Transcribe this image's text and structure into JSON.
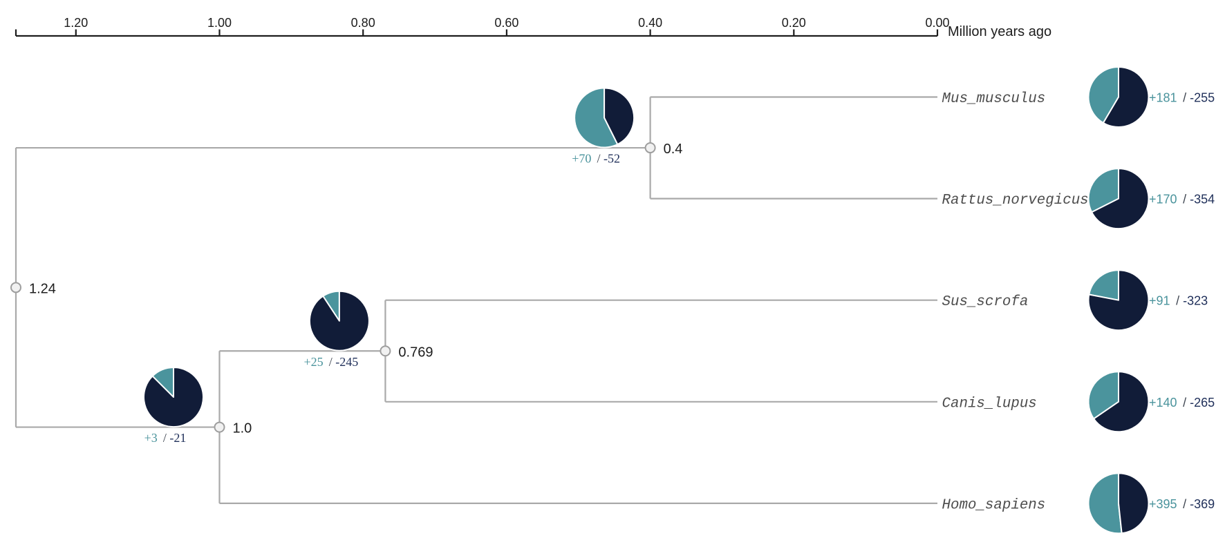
{
  "figure": {
    "kind": "phylogenetic tree with gene family expansion/contraction pie charts",
    "background_color": "#ffffff"
  },
  "axis": {
    "title": "Million years ago",
    "tick_labels": [
      "1.20",
      "1.00",
      "0.80",
      "0.60",
      "0.40",
      "0.20",
      "0.00"
    ],
    "tick_values": [
      1.2,
      1.0,
      0.8,
      0.6,
      0.4,
      0.2,
      0.0
    ]
  },
  "colors": {
    "expansion_teal": "#4B949D",
    "contraction_navy": "#111C38",
    "count_plus_teal": "#4A939C",
    "count_minus_navy": "#20305A",
    "count_slash_dark": "#3E4550",
    "branch_gray": "#A9A9A9",
    "node_circle_fill": "#F1F1F1",
    "node_circle_stroke": "#9E9E9E",
    "tip_name_gray": "#4D4D4D",
    "axis_black": "#1C1C1C",
    "pie_edge_white": "#FFFFFF"
  },
  "chart_data": {
    "type": "phylogenetic_tree_with_pies",
    "time_axis": {
      "label": "Million years ago",
      "ticks": [
        1.2,
        1.0,
        0.8,
        0.6,
        0.4,
        0.2,
        0.0
      ],
      "direction": "past_to_present_left_to_right"
    },
    "tips_top_to_bottom": [
      "Mus_musculus",
      "Rattus_norvegicus",
      "Sus_scrofa",
      "Canis_lupus",
      "Homo_sapiens"
    ],
    "tip_data": [
      {
        "name": "Mus_musculus",
        "expansions": 181,
        "contractions": 255,
        "plus_label": "+181",
        "minus_label": "-255"
      },
      {
        "name": "Rattus_norvegicus",
        "expansions": 170,
        "contractions": 354,
        "plus_label": "+170",
        "minus_label": "-354"
      },
      {
        "name": "Sus_scrofa",
        "expansions": 91,
        "contractions": 323,
        "plus_label": "+91",
        "minus_label": "-323"
      },
      {
        "name": "Canis_lupus",
        "expansions": 140,
        "contractions": 265,
        "plus_label": "+140",
        "minus_label": "-265"
      },
      {
        "name": "Homo_sapiens",
        "expansions": 395,
        "contractions": 369,
        "plus_label": "+395",
        "minus_label": "-369"
      }
    ],
    "internal_node_data": [
      {
        "id": "node_rodents",
        "age": 0.4,
        "age_label": "0.4",
        "children": [
          "Mus_musculus",
          "Rattus_norvegicus"
        ],
        "expansions": 70,
        "contractions": 52,
        "plus_label": "+70",
        "minus_label": "-52"
      },
      {
        "id": "node_sus_canis",
        "age": 0.769,
        "age_label": "0.769",
        "children": [
          "Sus_scrofa",
          "Canis_lupus"
        ],
        "expansions": 25,
        "contractions": 245,
        "plus_label": "+25",
        "minus_label": "-245"
      },
      {
        "id": "node_laurasia",
        "age": 1.0,
        "age_label": "1.0",
        "children": [
          "node_sus_canis",
          "Homo_sapiens"
        ],
        "expansions": 3,
        "contractions": 21,
        "plus_label": "+3",
        "minus_label": "-21"
      },
      {
        "id": "root",
        "age": 1.24,
        "age_label": "1.24",
        "children": [
          "node_rodents",
          "node_laurasia"
        ],
        "expansions": null,
        "contractions": null,
        "plus_label": "",
        "minus_label": ""
      }
    ],
    "tree_newick": "(((Mus_musculus,Rattus_norvegicus)0.4,((Sus_scrofa,Canis_lupus)0.769,Homo_sapiens)1.0)1.24);",
    "pie_semantics": "teal slice = gene family expansions (+), dark navy slice = contractions (-); slice fraction = count/(expansions+contractions), teal drawn counterclockwise from 12 o'clock"
  }
}
